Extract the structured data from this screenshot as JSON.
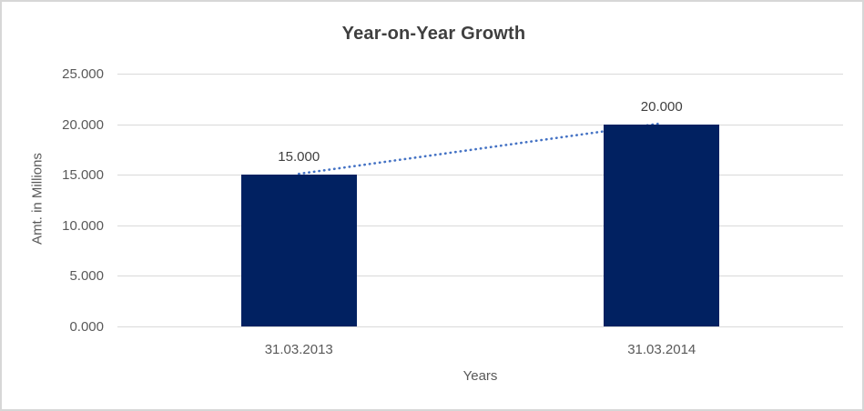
{
  "title": "Year-on-Year Growth",
  "chart_data": {
    "type": "bar",
    "title": "Year-on-Year Growth",
    "categories": [
      "31.03.2013",
      "31.03.2014"
    ],
    "values": [
      15.0,
      20.0
    ],
    "data_labels": [
      "15.000",
      "20.000"
    ],
    "xlabel": "Years",
    "ylabel": "Amt. in Millions",
    "ylim": [
      0,
      25
    ],
    "yticks": [
      0,
      5,
      10,
      15,
      20,
      25
    ],
    "ytick_labels": [
      "0.000",
      "5.000",
      "10.000",
      "15.000",
      "20.000",
      "25.000"
    ],
    "grid": true,
    "legend": "none",
    "trendline": {
      "type": "linear",
      "style": "dotted",
      "from_index": 0,
      "to_index": 1
    }
  },
  "colors": {
    "bar": "#012161",
    "trendline": "#4472C4",
    "gridline": "#D9D9D9",
    "axis_text": "#595959",
    "label_text": "#404040",
    "title_text": "#3F3F3F",
    "frame_border": "#D7D7D7",
    "background": "#FFFFFF"
  }
}
